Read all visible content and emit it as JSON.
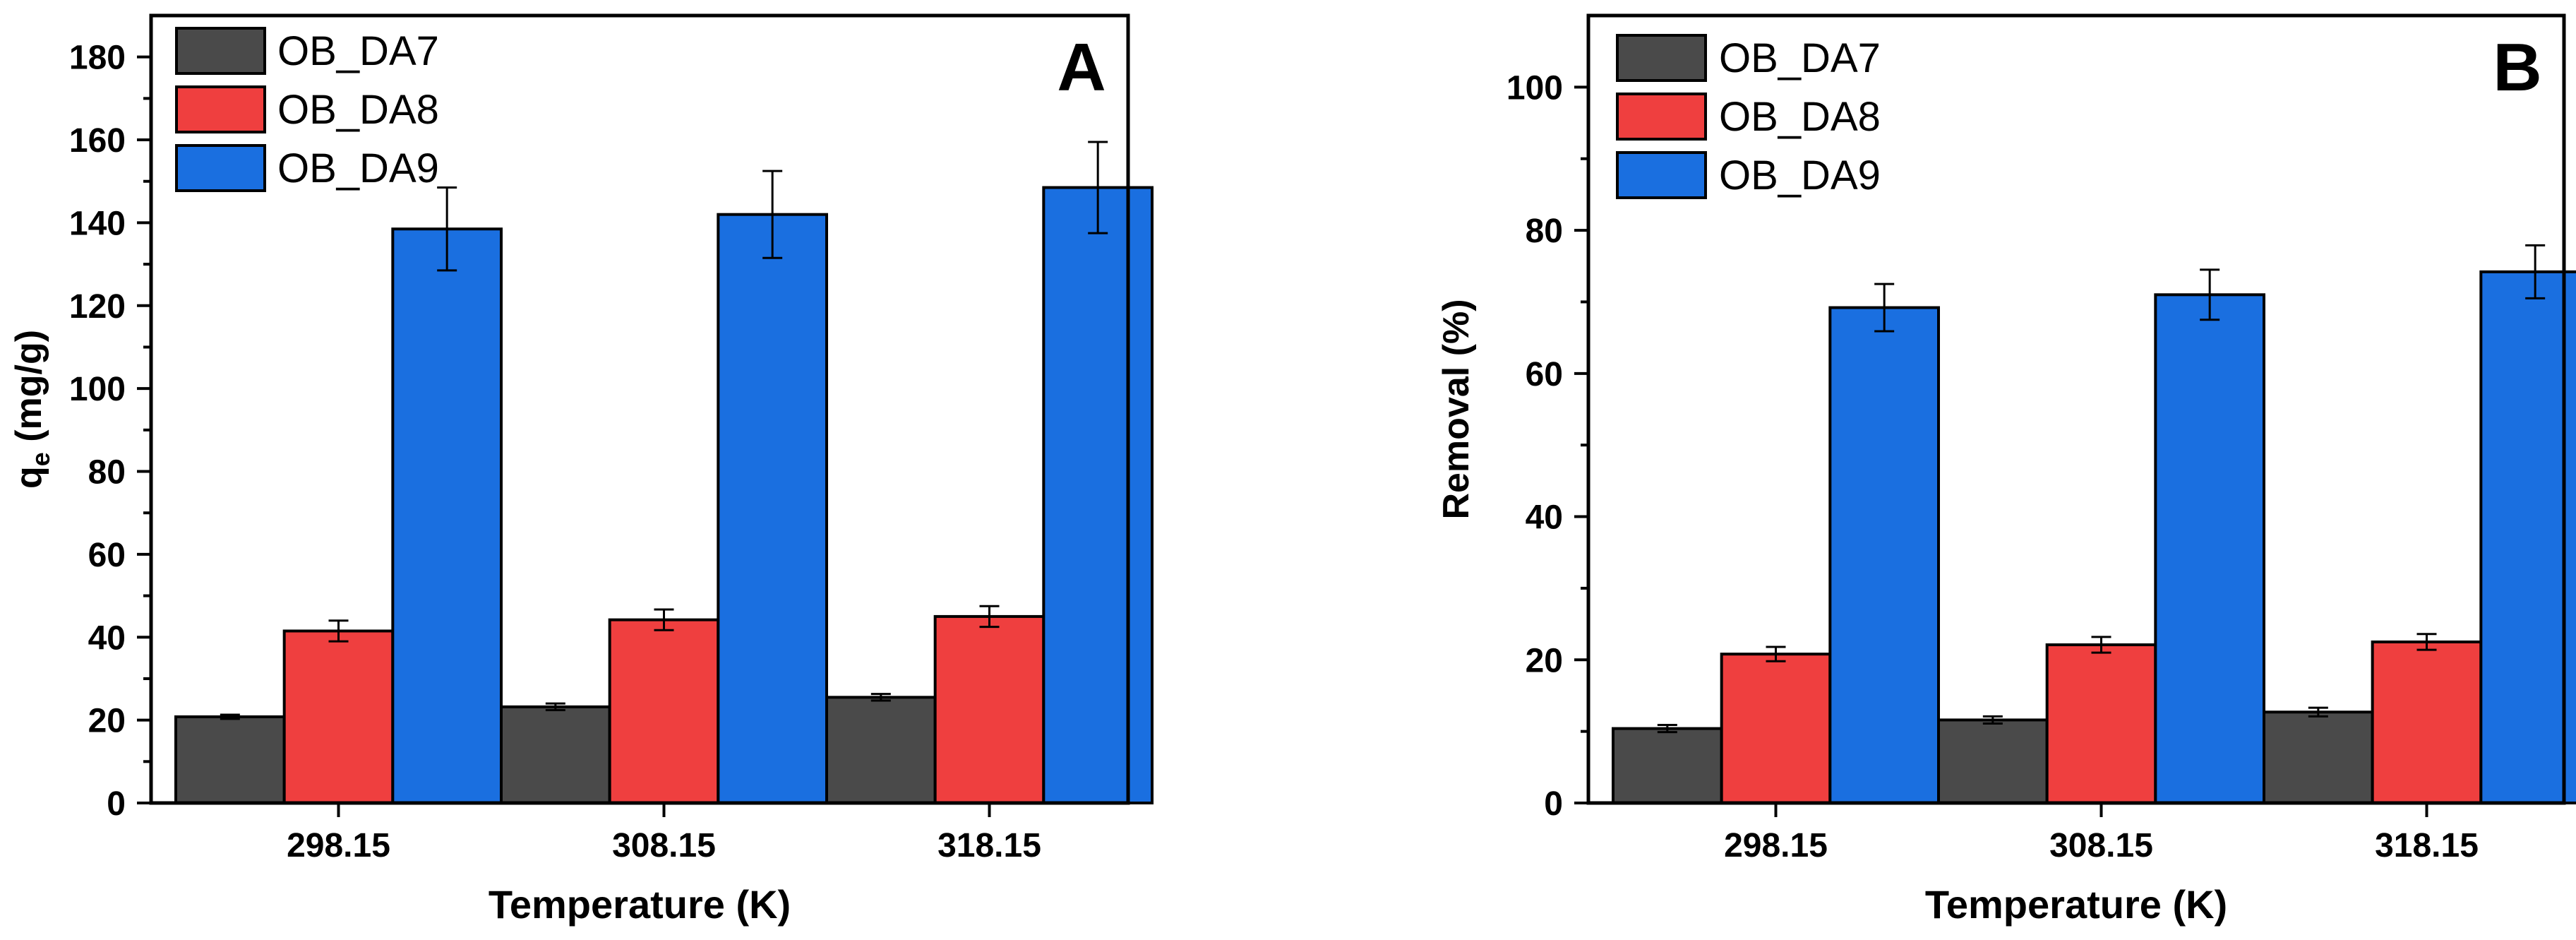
{
  "chart_data": [
    {
      "type": "bar",
      "panel_label": "A",
      "title": "",
      "xlabel": "Temperature (K)",
      "ylabel": {
        "main": "q",
        "sub": "e",
        "unit": " (mg/g)"
      },
      "categories": [
        "298.15",
        "308.15",
        "318.15"
      ],
      "ylim": [
        0,
        190
      ],
      "yticks": [
        0,
        20,
        40,
        60,
        80,
        100,
        120,
        140,
        160,
        180
      ],
      "legend_position": "top-left",
      "series": [
        {
          "name": "OB_DA7",
          "color": "#4a4a4a",
          "values": [
            20.8,
            23.2,
            25.5
          ],
          "errors": [
            0.5,
            0.8,
            0.8
          ]
        },
        {
          "name": "OB_DA8",
          "color": "#ef3f3f",
          "values": [
            41.5,
            44.2,
            45.0
          ],
          "errors": [
            2.5,
            2.5,
            2.5
          ]
        },
        {
          "name": "OB_DA9",
          "color": "#1a6fe0",
          "values": [
            138.5,
            142.0,
            148.5
          ],
          "errors": [
            10.0,
            10.5,
            11.0
          ]
        }
      ]
    },
    {
      "type": "bar",
      "panel_label": "B",
      "title": "",
      "xlabel": "Temperature (K)",
      "ylabel": {
        "main": "Removal (%)",
        "sub": "",
        "unit": ""
      },
      "categories": [
        "298.15",
        "308.15",
        "318.15"
      ],
      "ylim": [
        0,
        110
      ],
      "yticks": [
        0,
        20,
        40,
        60,
        80,
        100
      ],
      "legend_position": "top-left",
      "series": [
        {
          "name": "OB_DA7",
          "color": "#4a4a4a",
          "values": [
            10.4,
            11.6,
            12.7
          ],
          "errors": [
            0.5,
            0.5,
            0.6
          ]
        },
        {
          "name": "OB_DA8",
          "color": "#ef3f3f",
          "values": [
            20.8,
            22.1,
            22.5
          ],
          "errors": [
            1.0,
            1.1,
            1.1
          ]
        },
        {
          "name": "OB_DA9",
          "color": "#1a6fe0",
          "values": [
            69.2,
            71.0,
            74.2
          ],
          "errors": [
            3.3,
            3.5,
            3.7
          ]
        }
      ]
    }
  ]
}
